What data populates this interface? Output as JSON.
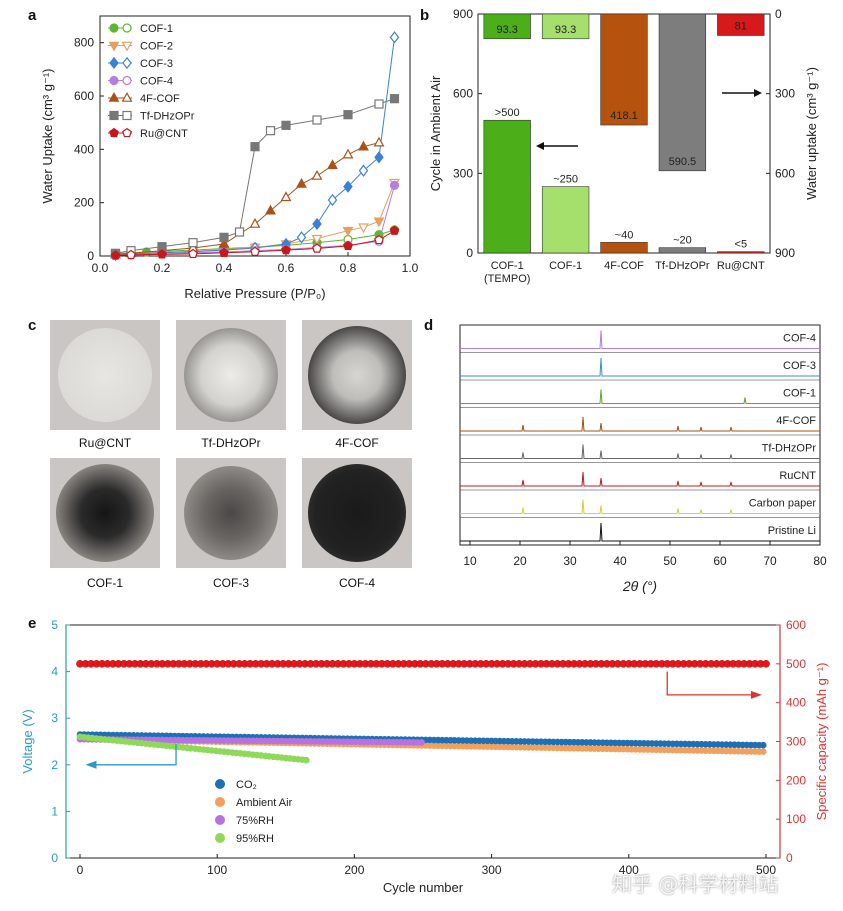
{
  "panel_labels": {
    "a": "a",
    "b": "b",
    "c": "c",
    "d": "d",
    "e": "e"
  },
  "chart_data": [
    {
      "panel": "a",
      "type": "line",
      "xlabel": "Relative Pressure (P/P₀)",
      "ylabel": "Water Uptake (cm³ g⁻¹)",
      "xlim": [
        0.0,
        1.0
      ],
      "ylim": [
        0,
        900
      ],
      "xticks": [
        "0.0",
        "0.2",
        "0.4",
        "0.6",
        "0.8",
        "1.0"
      ],
      "yticks": [
        "0",
        "200",
        "400",
        "600",
        "800"
      ],
      "legend_position": "top-left",
      "series": [
        {
          "name": "COF-1",
          "color": "#5bb82e",
          "marker": "circle",
          "x": [
            0.05,
            0.1,
            0.15,
            0.2,
            0.3,
            0.4,
            0.5,
            0.6,
            0.7,
            0.8,
            0.9,
            0.95
          ],
          "y": [
            8,
            12,
            15,
            18,
            22,
            28,
            33,
            40,
            50,
            62,
            80,
            98
          ]
        },
        {
          "name": "COF-2",
          "color": "#e8a060",
          "marker": "triangle-down",
          "x": [
            0.05,
            0.1,
            0.2,
            0.3,
            0.4,
            0.5,
            0.6,
            0.7,
            0.8,
            0.85,
            0.9,
            0.95
          ],
          "y": [
            5,
            10,
            14,
            18,
            24,
            32,
            45,
            65,
            95,
            108,
            130,
            275
          ]
        },
        {
          "name": "COF-3",
          "color": "#3b82d6",
          "marker": "diamond",
          "x": [
            0.05,
            0.1,
            0.2,
            0.3,
            0.4,
            0.5,
            0.6,
            0.65,
            0.7,
            0.75,
            0.8,
            0.85,
            0.9,
            0.95
          ],
          "y": [
            4,
            8,
            12,
            16,
            22,
            30,
            45,
            70,
            120,
            210,
            260,
            320,
            370,
            820
          ]
        },
        {
          "name": "COF-4",
          "color": "#b77ee0",
          "marker": "circle",
          "x": [
            0.05,
            0.1,
            0.2,
            0.3,
            0.4,
            0.5,
            0.6,
            0.7,
            0.8,
            0.9,
            0.95
          ],
          "y": [
            3,
            5,
            8,
            12,
            15,
            20,
            25,
            32,
            40,
            55,
            265
          ]
        },
        {
          "name": "4F-COF",
          "color": "#a8521a",
          "marker": "triangle-up",
          "x": [
            0.05,
            0.1,
            0.2,
            0.3,
            0.4,
            0.5,
            0.55,
            0.6,
            0.65,
            0.7,
            0.75,
            0.8,
            0.85,
            0.9
          ],
          "y": [
            5,
            10,
            20,
            30,
            45,
            120,
            170,
            220,
            270,
            300,
            340,
            380,
            410,
            425
          ]
        },
        {
          "name": "Tf-DHzOPr",
          "color": "#777777",
          "marker": "square",
          "x": [
            0.05,
            0.1,
            0.2,
            0.3,
            0.4,
            0.45,
            0.5,
            0.55,
            0.6,
            0.7,
            0.8,
            0.9,
            0.95
          ],
          "y": [
            10,
            20,
            35,
            50,
            70,
            90,
            410,
            470,
            490,
            510,
            530,
            570,
            590
          ]
        },
        {
          "name": "Ru@CNT",
          "color": "#c8161d",
          "marker": "pentagon",
          "x": [
            0.05,
            0.1,
            0.2,
            0.3,
            0.4,
            0.5,
            0.6,
            0.7,
            0.8,
            0.9,
            0.95
          ],
          "y": [
            2,
            4,
            6,
            8,
            12,
            16,
            22,
            28,
            38,
            60,
            95
          ]
        }
      ]
    },
    {
      "panel": "b",
      "type": "bar",
      "ylabel_left": "Cycle in Ambient Air",
      "ylabel_right": "Water uptake (cm³ g⁻¹)",
      "ylim_left": [
        0,
        900
      ],
      "ylim_right_inverted": [
        0,
        900
      ],
      "yticks_left": [
        "0",
        "300",
        "600",
        "900"
      ],
      "yticks_right": [
        "0",
        "300",
        "600",
        "900"
      ],
      "categories": [
        "COF-1\n(TEMPO)",
        "COF-1",
        "4F-COF",
        "Tf-DHzOPr",
        "Ru@CNT"
      ],
      "cycles": [
        500,
        250,
        40,
        20,
        5
      ],
      "cycle_labels": [
        ">500",
        "~250",
        "~40",
        "~20",
        "<5"
      ],
      "uptake": [
        93.3,
        93.3,
        418.1,
        590.5,
        81
      ],
      "uptake_labels": [
        "93.3",
        "93.3",
        "418.1",
        "590.5",
        "81"
      ],
      "colors": [
        "#4caf1a",
        "#a6e06c",
        "#b5520e",
        "#7d7d7d",
        "#d7191c"
      ]
    },
    {
      "panel": "d",
      "type": "line",
      "xlabel": "2θ (°)",
      "xlim": [
        8,
        80
      ],
      "xticks": [
        "10",
        "20",
        "30",
        "40",
        "50",
        "60",
        "70",
        "80"
      ],
      "series": [
        {
          "name": "COF-4",
          "color": "#b07ed8",
          "peaks": [
            36.2
          ]
        },
        {
          "name": "COF-3",
          "color": "#3a8fd0",
          "peaks": [
            36.2
          ]
        },
        {
          "name": "COF-1",
          "color": "#5aa82a",
          "peaks": [
            36.2,
            65
          ]
        },
        {
          "name": "4F-COF",
          "color": "#a0501a",
          "peaks": [
            20.6,
            32.6,
            36.2,
            51.6,
            56.2,
            62.2
          ]
        },
        {
          "name": "Tf-DHzOPr",
          "color": "#666666",
          "peaks": [
            20.6,
            32.6,
            36.2,
            51.6,
            56.2,
            62.2
          ]
        },
        {
          "name": "RuCNT",
          "color": "#b81e22",
          "peaks": [
            20.6,
            32.6,
            36.2,
            51.6,
            56.2,
            62.2
          ]
        },
        {
          "name": "Carbon paper",
          "color": "#d6cf3a",
          "peaks": [
            20.6,
            32.6,
            36.2,
            51.6,
            56.2,
            62.2
          ]
        },
        {
          "name": "Pristine Li",
          "color": "#111111",
          "peaks": [
            36.2
          ]
        }
      ]
    },
    {
      "panel": "e",
      "type": "scatter",
      "xlabel": "Cycle number",
      "ylabel_left": "Voltage (V)",
      "ylabel_right": "Specific capacity (mAh g⁻¹)",
      "xlim": [
        0,
        500
      ],
      "ylim_left": [
        0,
        5
      ],
      "ylim_right": [
        0,
        600
      ],
      "xticks": [
        "0",
        "100",
        "200",
        "300",
        "400",
        "500"
      ],
      "yticks_left": [
        "0",
        "1",
        "2",
        "3",
        "4",
        "5"
      ],
      "yticks_right": [
        "0",
        "100",
        "200",
        "300",
        "400",
        "500",
        "600"
      ],
      "capacity": 500,
      "series": [
        {
          "name": "CO₂",
          "color": "#1f6fb2",
          "cycles": 500,
          "v_start": 2.65,
          "v_end": 2.42
        },
        {
          "name": "Ambient Air",
          "color": "#f2a05c",
          "cycles": 500,
          "v_start": 2.55,
          "v_end": 2.28
        },
        {
          "name": "75%RH",
          "color": "#b672e0",
          "cycles": 250,
          "v_start": 2.55,
          "v_end": 2.48
        },
        {
          "name": "95%RH",
          "color": "#8ed85a",
          "cycles": 165,
          "v_start": 2.6,
          "v_end": 2.1
        }
      ],
      "capacity_color": "#e4181a"
    }
  ],
  "photos": [
    {
      "label": "Ru@CNT"
    },
    {
      "label": "Tf-DHzOPr"
    },
    {
      "label": "4F-COF"
    },
    {
      "label": "COF-1"
    },
    {
      "label": "COF-3"
    },
    {
      "label": "COF-4"
    }
  ],
  "watermark": "知乎 @科学材料站"
}
